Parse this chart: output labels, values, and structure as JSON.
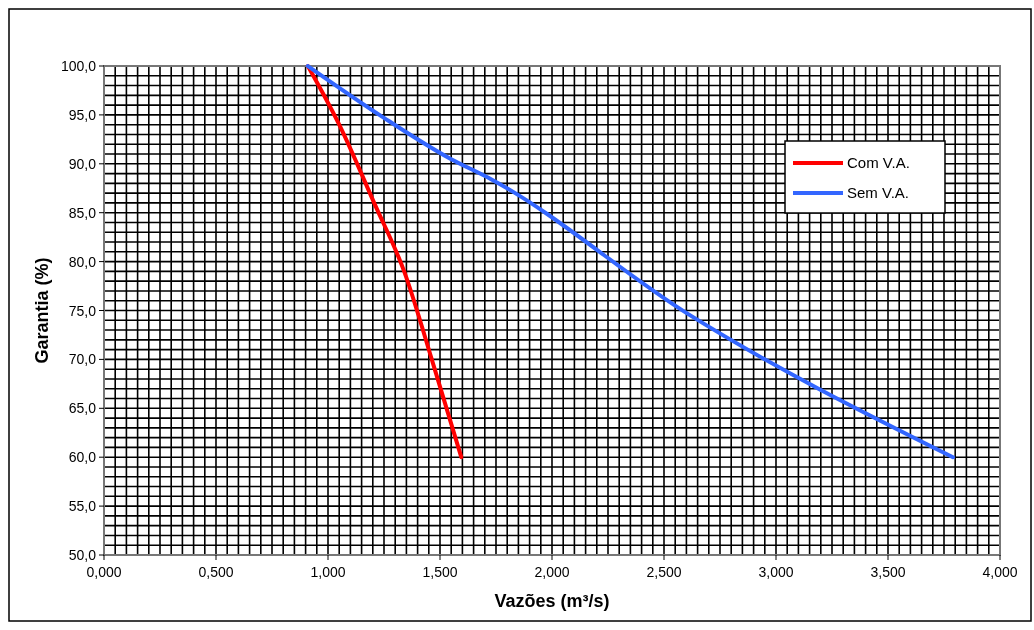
{
  "chart_data": {
    "type": "line",
    "xlabel": "Vazões (m³/s)",
    "ylabel": "Garantia (%)",
    "xlim": [
      0,
      4
    ],
    "ylim": [
      50,
      100
    ],
    "xticks": [
      {
        "value": 0,
        "label": "0,000"
      },
      {
        "value": 0.05,
        "label": null
      },
      {
        "value": 0.1,
        "label": null
      },
      {
        "value": 0.15,
        "label": null
      },
      {
        "value": 0.2,
        "label": null
      },
      {
        "value": 0.25,
        "label": null
      },
      {
        "value": 0.3,
        "label": null
      },
      {
        "value": 0.35,
        "label": null
      },
      {
        "value": 0.4,
        "label": null
      },
      {
        "value": 0.45,
        "label": null
      },
      {
        "value": 0.5,
        "label": "0,500"
      },
      {
        "value": 0.55,
        "label": null
      },
      {
        "value": 0.6,
        "label": null
      },
      {
        "value": 0.65,
        "label": null
      },
      {
        "value": 0.7,
        "label": null
      },
      {
        "value": 0.75,
        "label": null
      },
      {
        "value": 0.8,
        "label": null
      },
      {
        "value": 0.85,
        "label": null
      },
      {
        "value": 0.9,
        "label": null
      },
      {
        "value": 0.95,
        "label": null
      },
      {
        "value": 1,
        "label": "1,000"
      },
      {
        "value": 1.05,
        "label": null
      },
      {
        "value": 1.1,
        "label": null
      },
      {
        "value": 1.15,
        "label": null
      },
      {
        "value": 1.2,
        "label": null
      },
      {
        "value": 1.25,
        "label": null
      },
      {
        "value": 1.3,
        "label": null
      },
      {
        "value": 1.35,
        "label": null
      },
      {
        "value": 1.4,
        "label": null
      },
      {
        "value": 1.45,
        "label": null
      },
      {
        "value": 1.5,
        "label": "1,500"
      },
      {
        "value": 1.55,
        "label": null
      },
      {
        "value": 1.6,
        "label": null
      },
      {
        "value": 1.65,
        "label": null
      },
      {
        "value": 1.7,
        "label": null
      },
      {
        "value": 1.75,
        "label": null
      },
      {
        "value": 1.8,
        "label": null
      },
      {
        "value": 1.85,
        "label": null
      },
      {
        "value": 1.9,
        "label": null
      },
      {
        "value": 1.95,
        "label": null
      },
      {
        "value": 2,
        "label": "2,000"
      },
      {
        "value": 2.05,
        "label": null
      },
      {
        "value": 2.1,
        "label": null
      },
      {
        "value": 2.15,
        "label": null
      },
      {
        "value": 2.2,
        "label": null
      },
      {
        "value": 2.25,
        "label": null
      },
      {
        "value": 2.3,
        "label": null
      },
      {
        "value": 2.35,
        "label": null
      },
      {
        "value": 2.4,
        "label": null
      },
      {
        "value": 2.45,
        "label": null
      },
      {
        "value": 2.5,
        "label": "2,500"
      },
      {
        "value": 2.55,
        "label": null
      },
      {
        "value": 2.6,
        "label": null
      },
      {
        "value": 2.65,
        "label": null
      },
      {
        "value": 2.7,
        "label": null
      },
      {
        "value": 2.75,
        "label": null
      },
      {
        "value": 2.8,
        "label": null
      },
      {
        "value": 2.85,
        "label": null
      },
      {
        "value": 2.9,
        "label": null
      },
      {
        "value": 2.95,
        "label": null
      },
      {
        "value": 3,
        "label": "3,000"
      },
      {
        "value": 3.05,
        "label": null
      },
      {
        "value": 3.1,
        "label": null
      },
      {
        "value": 3.15,
        "label": null
      },
      {
        "value": 3.2,
        "label": null
      },
      {
        "value": 3.25,
        "label": null
      },
      {
        "value": 3.3,
        "label": null
      },
      {
        "value": 3.35,
        "label": null
      },
      {
        "value": 3.4,
        "label": null
      },
      {
        "value": 3.45,
        "label": null
      },
      {
        "value": 3.5,
        "label": "3,500"
      },
      {
        "value": 3.55,
        "label": null
      },
      {
        "value": 3.6,
        "label": null
      },
      {
        "value": 3.65,
        "label": null
      },
      {
        "value": 3.7,
        "label": null
      },
      {
        "value": 3.75,
        "label": null
      },
      {
        "value": 3.8,
        "label": null
      },
      {
        "value": 3.85,
        "label": null
      },
      {
        "value": 3.9,
        "label": null
      },
      {
        "value": 3.95,
        "label": null
      },
      {
        "value": 4,
        "label": "4,000"
      }
    ],
    "yticks": [
      {
        "value": 50,
        "label": "50,0"
      },
      {
        "value": 51,
        "label": null
      },
      {
        "value": 52,
        "label": null
      },
      {
        "value": 53,
        "label": null
      },
      {
        "value": 54,
        "label": null
      },
      {
        "value": 55,
        "label": "55,0"
      },
      {
        "value": 56,
        "label": null
      },
      {
        "value": 57,
        "label": null
      },
      {
        "value": 58,
        "label": null
      },
      {
        "value": 59,
        "label": null
      },
      {
        "value": 60,
        "label": "60,0"
      },
      {
        "value": 61,
        "label": null
      },
      {
        "value": 62,
        "label": null
      },
      {
        "value": 63,
        "label": null
      },
      {
        "value": 64,
        "label": null
      },
      {
        "value": 65,
        "label": "65,0"
      },
      {
        "value": 66,
        "label": null
      },
      {
        "value": 67,
        "label": null
      },
      {
        "value": 68,
        "label": null
      },
      {
        "value": 69,
        "label": null
      },
      {
        "value": 70,
        "label": "70,0"
      },
      {
        "value": 71,
        "label": null
      },
      {
        "value": 72,
        "label": null
      },
      {
        "value": 73,
        "label": null
      },
      {
        "value": 74,
        "label": null
      },
      {
        "value": 75,
        "label": "75,0"
      },
      {
        "value": 76,
        "label": null
      },
      {
        "value": 77,
        "label": null
      },
      {
        "value": 78,
        "label": null
      },
      {
        "value": 79,
        "label": null
      },
      {
        "value": 80,
        "label": "80,0"
      },
      {
        "value": 81,
        "label": null
      },
      {
        "value": 82,
        "label": null
      },
      {
        "value": 83,
        "label": null
      },
      {
        "value": 84,
        "label": null
      },
      {
        "value": 85,
        "label": "85,0"
      },
      {
        "value": 86,
        "label": null
      },
      {
        "value": 87,
        "label": null
      },
      {
        "value": 88,
        "label": null
      },
      {
        "value": 89,
        "label": null
      },
      {
        "value": 90,
        "label": "90,0"
      },
      {
        "value": 91,
        "label": null
      },
      {
        "value": 92,
        "label": null
      },
      {
        "value": 93,
        "label": null
      },
      {
        "value": 94,
        "label": null
      },
      {
        "value": 95,
        "label": "95,0"
      },
      {
        "value": 96,
        "label": null
      },
      {
        "value": 97,
        "label": null
      },
      {
        "value": 98,
        "label": null
      },
      {
        "value": 99,
        "label": null
      },
      {
        "value": 100,
        "label": "100,0"
      }
    ],
    "grid": true,
    "legend": "top right",
    "marker": "none",
    "line_style": "solid",
    "series": [
      {
        "name": "Com V.A.",
        "color": "#ff0000",
        "x": [
          0.91,
          1.05,
          1.21,
          1.34,
          1.47,
          1.595
        ],
        "values": [
          100,
          94,
          85.8,
          79,
          69.5,
          60
        ]
      },
      {
        "name": "Sem V.A.",
        "color": "#3366ff",
        "x": [
          0.91,
          1.25,
          1.54,
          1.73,
          2.61,
          3.79
        ],
        "values": [
          100,
          94.7,
          90.6,
          88.4,
          74.6,
          60
        ]
      }
    ]
  }
}
